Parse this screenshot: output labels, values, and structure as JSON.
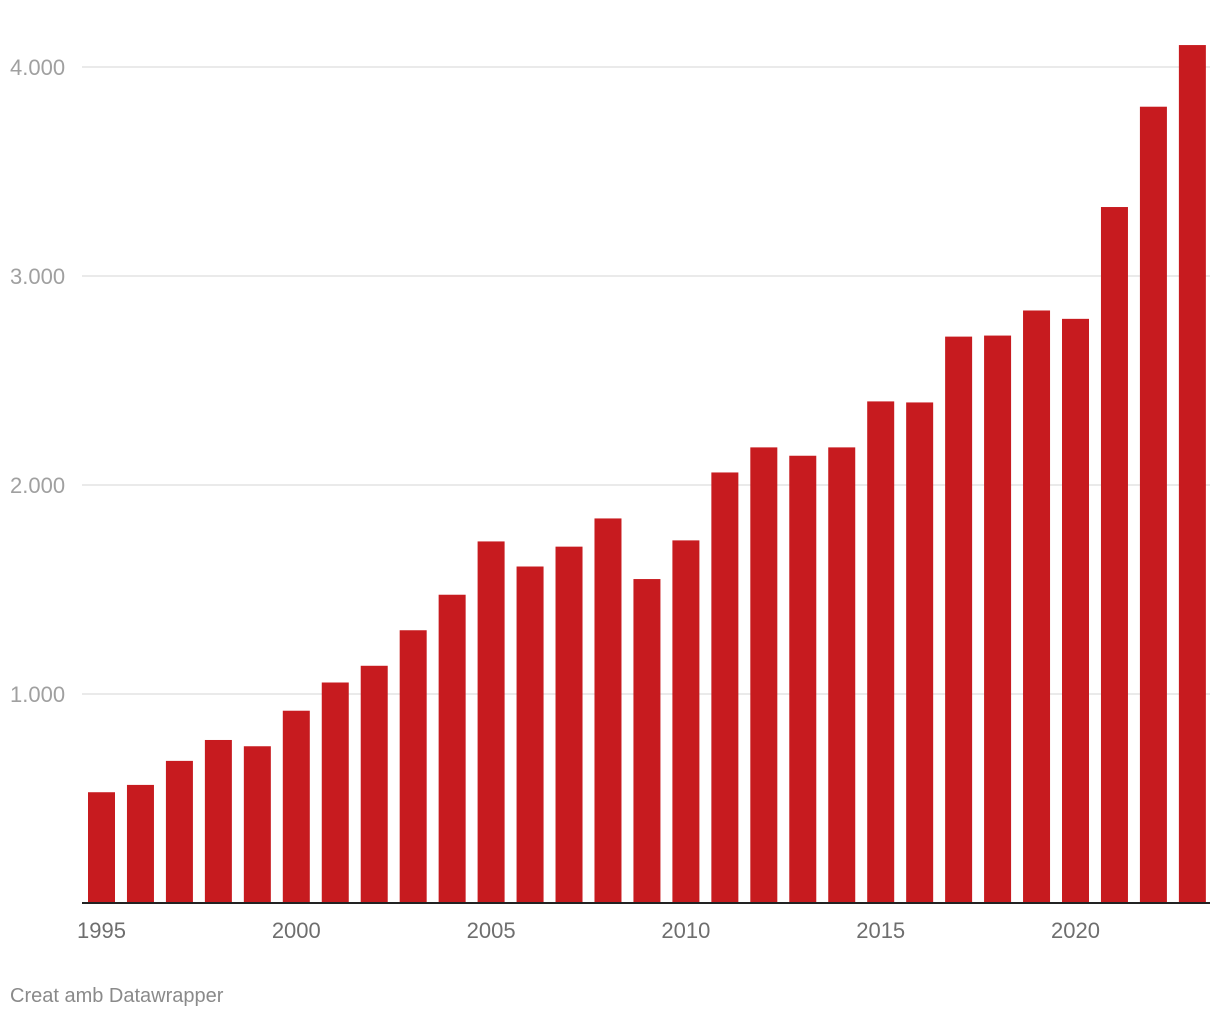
{
  "chart_data": {
    "type": "bar",
    "categories": [
      1995,
      1996,
      1997,
      1998,
      1999,
      2000,
      2001,
      2002,
      2003,
      2004,
      2005,
      2006,
      2007,
      2008,
      2009,
      2010,
      2011,
      2012,
      2013,
      2014,
      2015,
      2016,
      2017,
      2018,
      2019,
      2020,
      2021,
      2022,
      2023
    ],
    "values": [
      530,
      565,
      680,
      780,
      750,
      920,
      1055,
      1135,
      1305,
      1475,
      1730,
      1610,
      1705,
      1840,
      1550,
      1735,
      2060,
      2180,
      2140,
      2180,
      2400,
      2395,
      2710,
      2715,
      2835,
      2795,
      3330,
      3810,
      4105
    ],
    "ylim": [
      0,
      4000
    ],
    "yticks": [
      {
        "value": 1000,
        "label": "1.000"
      },
      {
        "value": 2000,
        "label": "2.000"
      },
      {
        "value": 3000,
        "label": "3.000"
      },
      {
        "value": 4000,
        "label": "4.000"
      }
    ],
    "xticks": [
      {
        "value": 1995,
        "label": "1995"
      },
      {
        "value": 2000,
        "label": "2000"
      },
      {
        "value": 2005,
        "label": "2005"
      },
      {
        "value": 2010,
        "label": "2010"
      },
      {
        "value": 2015,
        "label": "2015"
      },
      {
        "value": 2020,
        "label": "2020"
      }
    ],
    "grid": true,
    "colors": {
      "bar": "#c71b1f",
      "grid": "#e3e3e3",
      "axis": "#222222"
    }
  },
  "footer": {
    "credit": "Creat amb Datawrapper"
  }
}
